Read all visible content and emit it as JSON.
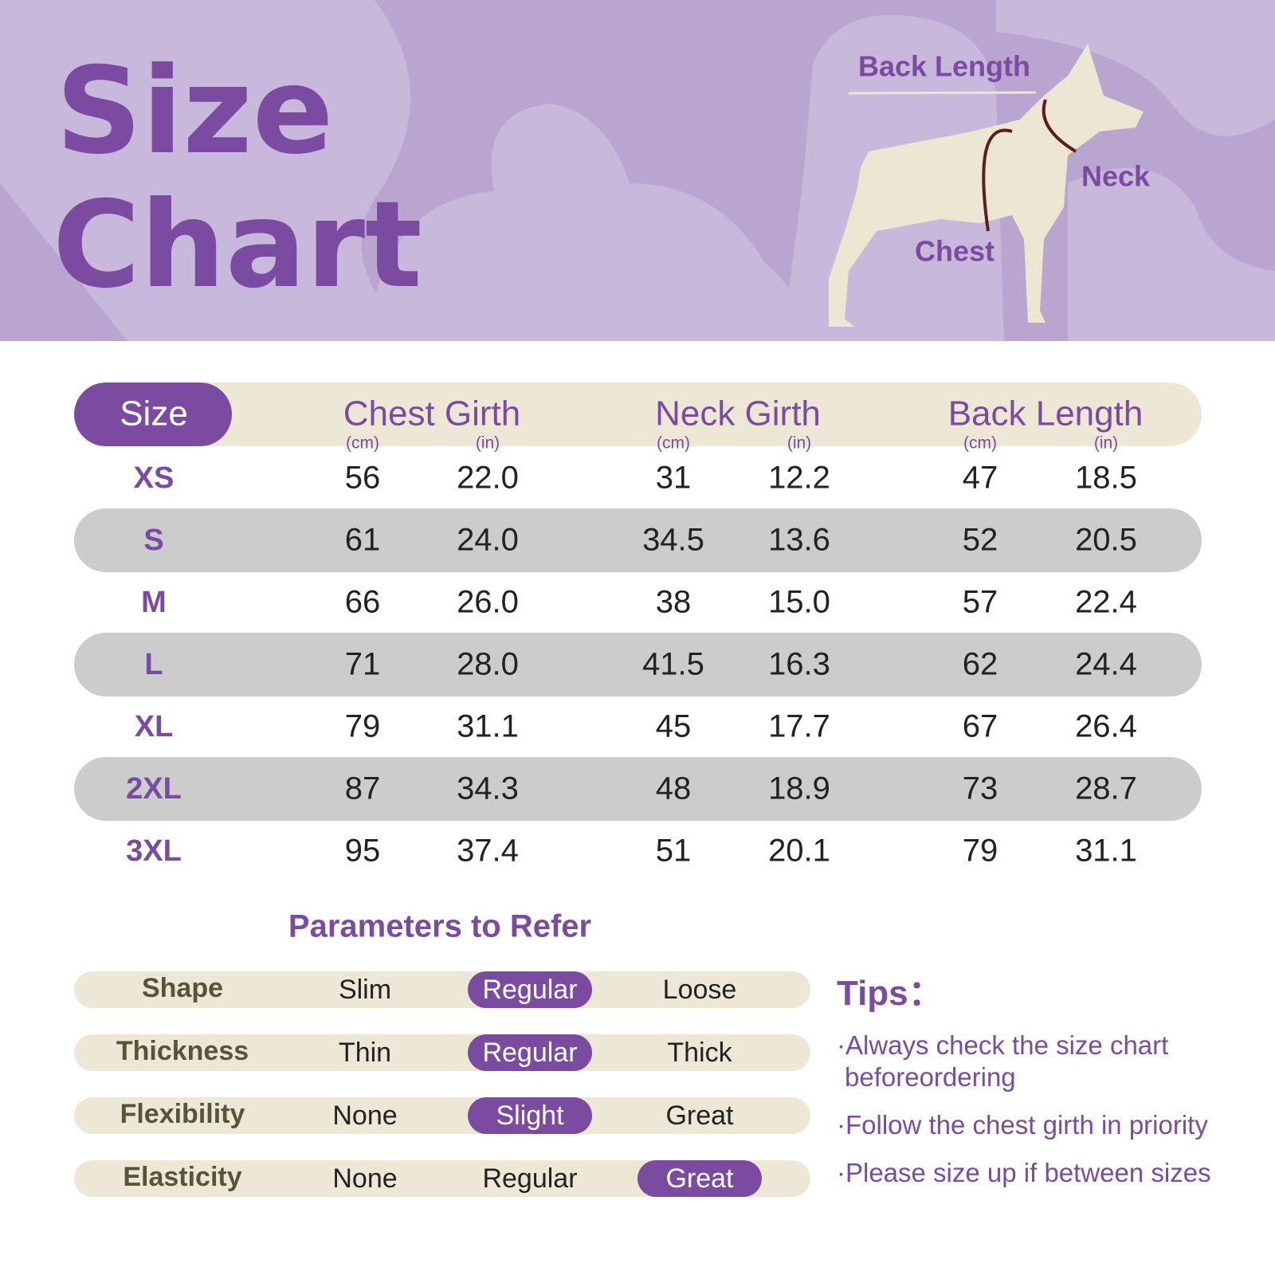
{
  "header": {
    "title_line1": "Size",
    "title_line2": "Chart",
    "labels": {
      "back_length": "Back Length",
      "neck": "Neck",
      "chest": "Chest"
    }
  },
  "table": {
    "headers": [
      "Size",
      "Chest Girth",
      "Neck Girth",
      "Back Length"
    ],
    "units": [
      "(cm)",
      "(in)",
      "(cm)",
      "(in)",
      "(cm)",
      "(in)"
    ],
    "rows": [
      [
        "XS",
        "56",
        "22.0",
        "31",
        "12.2",
        "47",
        "18.5"
      ],
      [
        "S",
        "61",
        "24.0",
        "34.5",
        "13.6",
        "52",
        "20.5"
      ],
      [
        "M",
        "66",
        "26.0",
        "38",
        "15.0",
        "57",
        "22.4"
      ],
      [
        "L",
        "71",
        "28.0",
        "41.5",
        "16.3",
        "62",
        "24.4"
      ],
      [
        "XL",
        "79",
        "31.1",
        "45",
        "17.7",
        "67",
        "26.4"
      ],
      [
        "2XL",
        "87",
        "34.3",
        "48",
        "18.9",
        "73",
        "28.7"
      ],
      [
        "3XL",
        "95",
        "37.4",
        "51",
        "20.1",
        "79",
        "31.1"
      ]
    ]
  },
  "parameters": {
    "title": "Parameters to Refer",
    "rows": [
      {
        "label": "Shape",
        "options": [
          "Slim",
          "Regular",
          "Loose"
        ],
        "selected": 1
      },
      {
        "label": "Thickness",
        "options": [
          "Thin",
          "Regular",
          "Thick"
        ],
        "selected": 1
      },
      {
        "label": "Flexibility",
        "options": [
          "None",
          "Slight",
          "Great"
        ],
        "selected": 1
      },
      {
        "label": "Elasticity",
        "options": [
          "None",
          "Regular",
          "Great"
        ],
        "selected": 2
      }
    ]
  },
  "tips": {
    "title": "Tips：",
    "items": [
      "·Always check the size chart beforeordering",
      "·Follow the chest girth in priority",
      "·Please size up if between sizes"
    ]
  }
}
